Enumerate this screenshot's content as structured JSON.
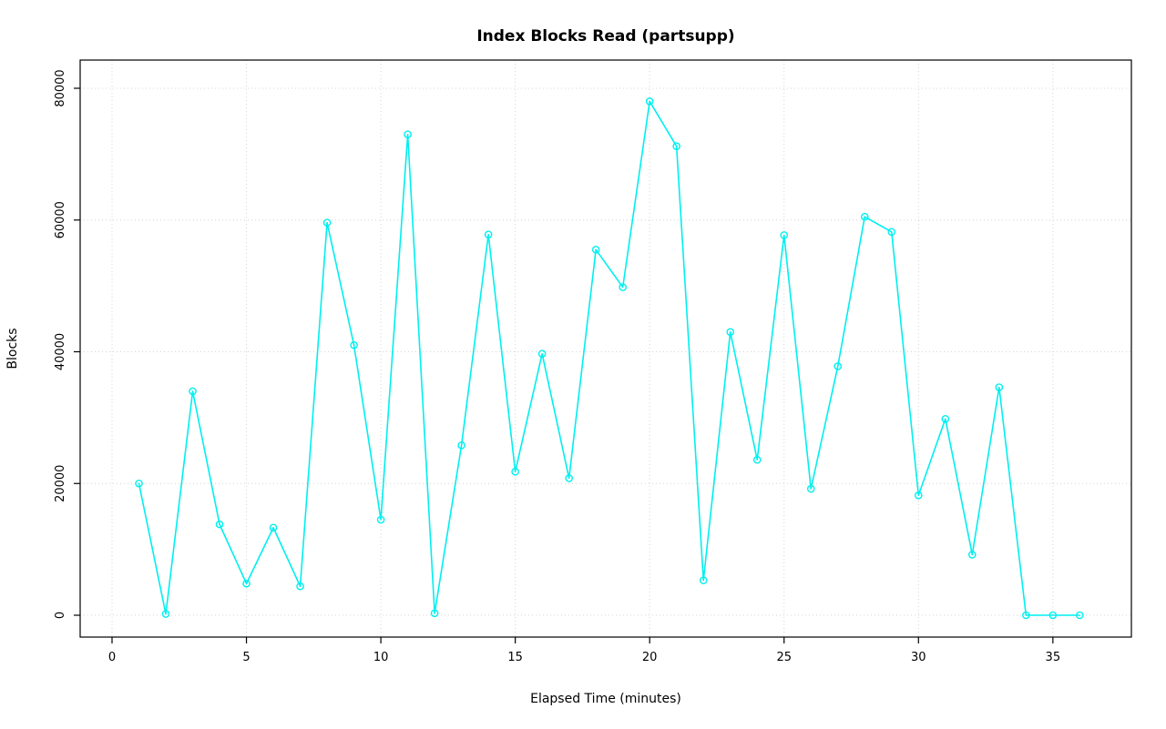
{
  "chart_data": {
    "type": "line",
    "title": "Index Blocks Read (partsupp)",
    "xlabel": "Elapsed Time (minutes)",
    "ylabel": "Blocks",
    "x": [
      1,
      2,
      3,
      4,
      5,
      6,
      7,
      8,
      9,
      10,
      11,
      12,
      13,
      14,
      15,
      16,
      17,
      18,
      19,
      20,
      21,
      22,
      23,
      24,
      25,
      26,
      27,
      28,
      29,
      30,
      31,
      32,
      33,
      34,
      35,
      36
    ],
    "values": [
      20000,
      200,
      34000,
      13800,
      4800,
      13300,
      4400,
      59600,
      41000,
      14500,
      73000,
      300,
      25800,
      57800,
      21800,
      39700,
      20800,
      55500,
      49800,
      78000,
      71200,
      5300,
      43000,
      23600,
      57700,
      19200,
      37800,
      60500,
      58200,
      18200,
      29800,
      9200,
      34600,
      0,
      0,
      0
    ],
    "xticks": [
      0,
      5,
      10,
      15,
      20,
      25,
      30,
      35
    ],
    "xtick_labels": [
      "0",
      "5",
      "10",
      "15",
      "20",
      "25",
      "30",
      "35"
    ],
    "yticks": [
      0,
      20000,
      40000,
      60000,
      80000
    ],
    "ytick_labels": [
      "0",
      "20000",
      "40000",
      "60000",
      "80000"
    ],
    "xlim": [
      -1.186,
      37.92
    ],
    "ylim": [
      -3316,
      84283
    ],
    "grid": true,
    "legend_position": "none",
    "marker": "open-circle",
    "colors": {
      "series": "#00efef",
      "grid": "#d4d4d4",
      "axis": "#000000",
      "background": "#ffffff"
    }
  }
}
